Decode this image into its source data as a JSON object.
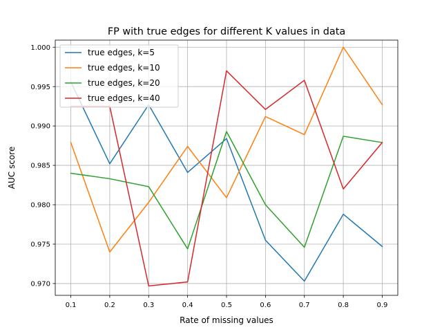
{
  "chart_data": {
    "type": "line",
    "title": "FP with true edges for different K values in data",
    "xlabel": "Rate of missing values",
    "ylabel": "AUC score",
    "x": [
      0.1,
      0.2,
      0.3,
      0.4,
      0.5,
      0.6,
      0.7,
      0.8,
      0.9
    ],
    "xticks": [
      "0.1",
      "0.2",
      "0.3",
      "0.4",
      "0.5",
      "0.6",
      "0.7",
      "0.8",
      "0.9"
    ],
    "yticks": [
      "0.970",
      "0.975",
      "0.980",
      "0.985",
      "0.990",
      "0.995",
      "1.000"
    ],
    "xlim": [
      0.06,
      0.94
    ],
    "ylim": [
      0.9685,
      1.0009
    ],
    "grid": true,
    "legend_position": "top-left",
    "series": [
      {
        "name": "true edges, k=5",
        "color": "#1f77b4",
        "values": [
          0.9956,
          0.9852,
          0.9927,
          0.9841,
          0.9884,
          0.9755,
          0.9703,
          0.9788,
          0.9747
        ]
      },
      {
        "name": "true edges, k=10",
        "color": "#ff7f0e",
        "values": [
          0.9879,
          0.974,
          0.9803,
          0.9874,
          0.9809,
          0.9912,
          0.9889,
          1.0,
          0.9927
        ]
      },
      {
        "name": "true edges, k=20",
        "color": "#2ca02c",
        "values": [
          0.984,
          0.9833,
          0.9823,
          0.9744,
          0.9893,
          0.98,
          0.9746,
          0.9887,
          0.9879
        ]
      },
      {
        "name": "true edges, k=40",
        "color": "#d62728",
        "values": [
          0.9925,
          0.9925,
          0.9697,
          0.9702,
          0.997,
          0.9921,
          0.9958,
          0.982,
          0.9879
        ]
      }
    ]
  }
}
